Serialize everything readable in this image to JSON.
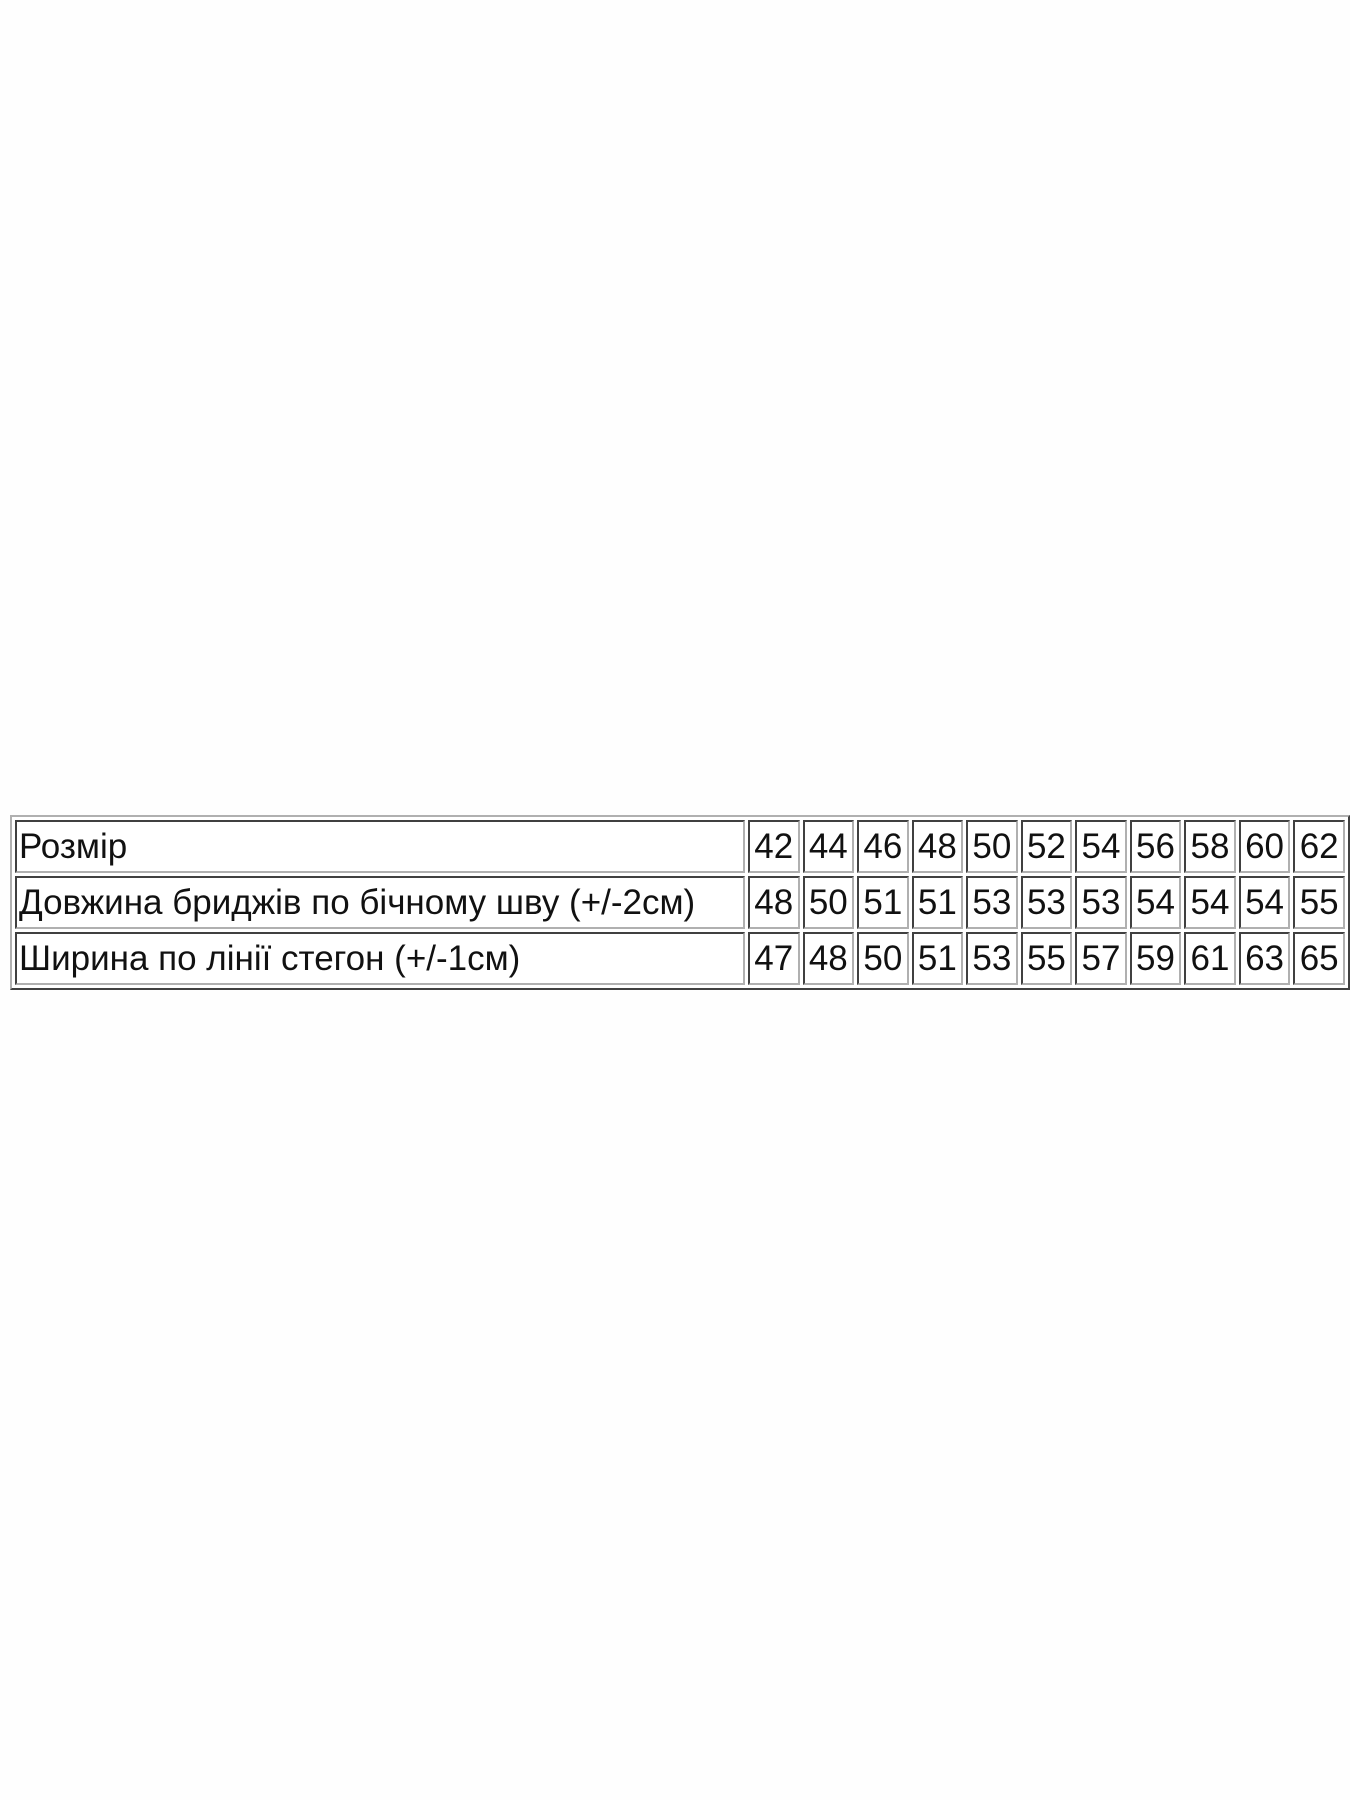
{
  "table": {
    "rows": [
      {
        "label": "Розмір",
        "values": [
          "42",
          "44",
          "46",
          "48",
          "50",
          "52",
          "54",
          "56",
          "58",
          "60",
          "62"
        ]
      },
      {
        "label": "Довжина бриджів по бічному шву (+/-2см)",
        "values": [
          "48",
          "50",
          "51",
          "51",
          "53",
          "53",
          "53",
          "54",
          "54",
          "54",
          "55"
        ]
      },
      {
        "label": "Ширина по лінії стегон (+/-1см)",
        "values": [
          "47",
          "48",
          "50",
          "51",
          "53",
          "55",
          "57",
          "59",
          "61",
          "63",
          "65"
        ]
      }
    ]
  }
}
